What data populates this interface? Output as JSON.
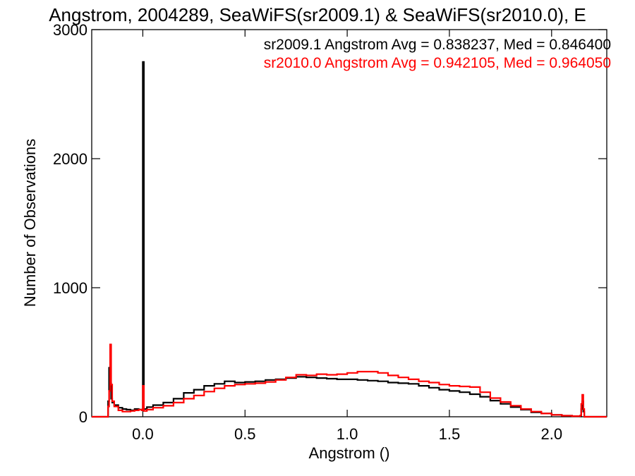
{
  "chart_data": {
    "type": "line",
    "title": "Angstrom, 2004289, SeaWiFS(sr2009.1) & SeaWiFS(sr2010.0), E",
    "xlabel": "Angstrom ()",
    "ylabel": "Number of Observations",
    "xlim": [
      -0.25,
      2.27
    ],
    "ylim": [
      0,
      3000
    ],
    "x_ticks": [
      "0.0",
      "0.5",
      "1.0",
      "1.5",
      "2.0"
    ],
    "x_tick_values": [
      0.0,
      0.5,
      1.0,
      1.5,
      2.0
    ],
    "y_ticks": [
      "0",
      "1000",
      "2000",
      "3000"
    ],
    "y_tick_values": [
      0,
      1000,
      2000,
      3000
    ],
    "grid": false,
    "legend_position": "top-right",
    "series": [
      {
        "name": "sr2009.1 Angstrom Avg = 0.838237, Med = 0.846400",
        "color": "#000000",
        "x": [
          -0.25,
          -0.18,
          -0.17,
          -0.165,
          -0.16,
          -0.155,
          -0.15,
          -0.14,
          -0.12,
          -0.1,
          -0.08,
          -0.06,
          -0.04,
          -0.02,
          -0.005,
          0.0,
          0.005,
          0.02,
          0.05,
          0.1,
          0.15,
          0.2,
          0.25,
          0.3,
          0.35,
          0.4,
          0.45,
          0.5,
          0.55,
          0.6,
          0.65,
          0.7,
          0.75,
          0.8,
          0.85,
          0.9,
          0.95,
          1.0,
          1.05,
          1.1,
          1.15,
          1.2,
          1.25,
          1.3,
          1.35,
          1.4,
          1.45,
          1.5,
          1.55,
          1.6,
          1.65,
          1.7,
          1.75,
          1.8,
          1.85,
          1.9,
          1.95,
          2.0,
          2.05,
          2.1,
          2.14,
          2.145,
          2.15,
          2.155,
          2.16,
          2.27
        ],
        "y": [
          0,
          0,
          120,
          380,
          260,
          140,
          110,
          90,
          70,
          60,
          55,
          50,
          60,
          55,
          50,
          2750,
          60,
          75,
          90,
          110,
          140,
          185,
          210,
          240,
          255,
          275,
          265,
          270,
          275,
          285,
          290,
          300,
          310,
          305,
          300,
          295,
          290,
          290,
          285,
          280,
          275,
          265,
          260,
          255,
          240,
          225,
          210,
          200,
          190,
          175,
          155,
          125,
          100,
          75,
          55,
          35,
          25,
          15,
          8,
          5,
          3,
          60,
          120,
          40,
          0,
          0
        ]
      },
      {
        "name": "sr2010.0 Angstrom Avg = 0.942105, Med = 0.964050",
        "color": "#ff0000",
        "x": [
          -0.25,
          -0.18,
          -0.17,
          -0.165,
          -0.16,
          -0.155,
          -0.15,
          -0.14,
          -0.12,
          -0.1,
          -0.08,
          -0.06,
          -0.04,
          -0.02,
          -0.005,
          0.0,
          0.005,
          0.02,
          0.05,
          0.1,
          0.15,
          0.2,
          0.25,
          0.3,
          0.35,
          0.4,
          0.45,
          0.5,
          0.55,
          0.6,
          0.65,
          0.7,
          0.75,
          0.8,
          0.85,
          0.9,
          0.95,
          1.0,
          1.05,
          1.1,
          1.15,
          1.2,
          1.25,
          1.3,
          1.35,
          1.4,
          1.45,
          1.5,
          1.55,
          1.6,
          1.65,
          1.7,
          1.75,
          1.8,
          1.85,
          1.9,
          1.95,
          2.0,
          2.05,
          2.1,
          2.14,
          2.145,
          2.15,
          2.155,
          2.16,
          2.27
        ],
        "y": [
          0,
          0,
          80,
          200,
          560,
          250,
          120,
          80,
          50,
          40,
          40,
          45,
          50,
          55,
          50,
          240,
          45,
          55,
          70,
          85,
          110,
          140,
          165,
          195,
          220,
          240,
          250,
          255,
          260,
          270,
          285,
          305,
          325,
          320,
          330,
          325,
          330,
          340,
          350,
          350,
          340,
          320,
          305,
          290,
          275,
          265,
          250,
          240,
          235,
          230,
          190,
          145,
          115,
          85,
          60,
          40,
          25,
          15,
          8,
          5,
          10,
          100,
          170,
          60,
          0,
          0
        ]
      }
    ]
  }
}
